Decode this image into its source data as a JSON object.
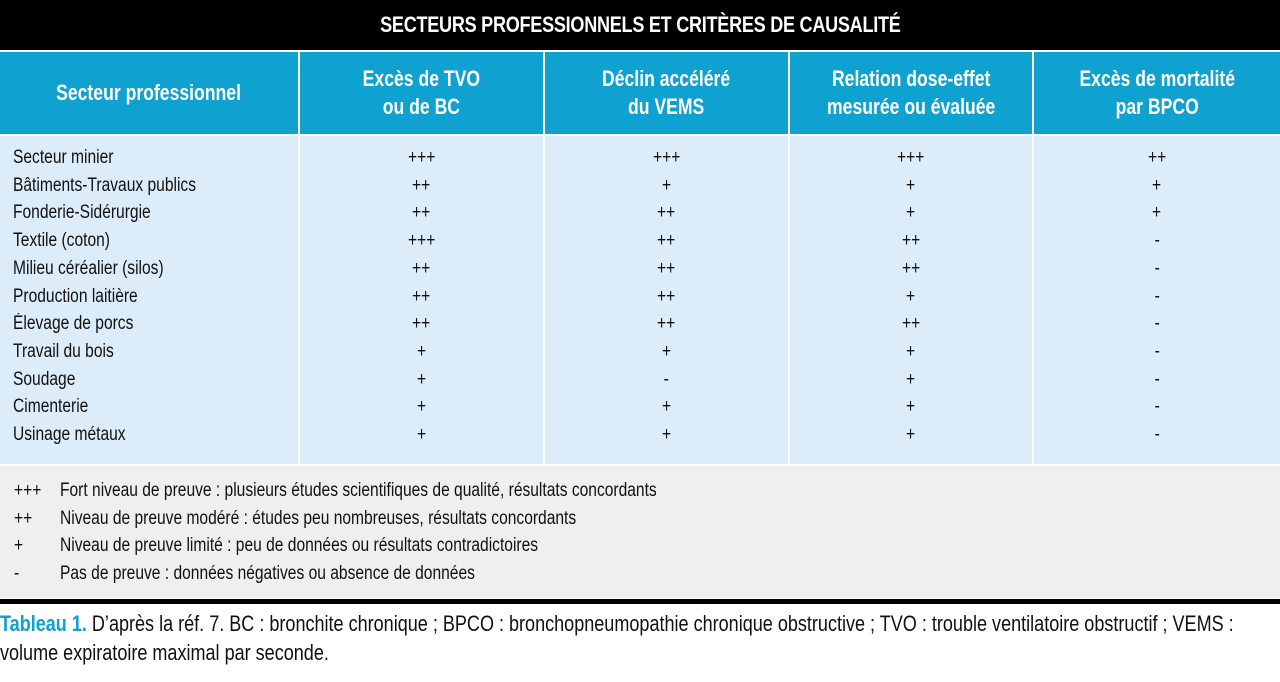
{
  "title": "SECTEURS PROFESSIONNELS ET CRITÈRES DE CAUSALITÉ",
  "columns": [
    "Secteur professionnel",
    "Excès de TVO\nou de BC",
    "Déclin accéléré\ndu VEMS",
    "Relation dose-effet\nmesurée ou évaluée",
    "Excès de mortalité\npar BPCO"
  ],
  "rows": [
    [
      "Secteur minier",
      "+++",
      "+++",
      "+++",
      "++"
    ],
    [
      "Bâtiments-Travaux publics",
      "++",
      "+",
      "+",
      "+"
    ],
    [
      "Fonderie-Sidérurgie",
      "++",
      "++",
      "+",
      "+"
    ],
    [
      "Textile (coton)",
      "+++",
      "++",
      "++",
      "-"
    ],
    [
      "Milieu céréalier (silos)",
      "++",
      "++",
      "++",
      "-"
    ],
    [
      "Production laitière",
      "++",
      "++",
      "+",
      "-"
    ],
    [
      "Élevage de porcs",
      "++",
      "++",
      "++",
      "-"
    ],
    [
      "Travail du bois",
      "+",
      "+",
      "+",
      "-"
    ],
    [
      "Soudage",
      "+",
      "-",
      "+",
      "-"
    ],
    [
      "Cimenterie",
      "+",
      "+",
      "+",
      "-"
    ],
    [
      "Usinage métaux",
      "+",
      "+",
      "+",
      "-"
    ]
  ],
  "legend": [
    {
      "symbol": "+++",
      "text": "Fort niveau de preuve : plusieurs études scientifiques de qualité, résultats concordants"
    },
    {
      "symbol": "++",
      "text": "Niveau de preuve modéré : études peu nombreuses, résultats concordants"
    },
    {
      "symbol": "+",
      "text": "Niveau de preuve limité : peu de données ou résultats contradictoires"
    },
    {
      "symbol": "-",
      "text": "Pas de preuve : données négatives ou absence de données"
    }
  ],
  "caption": {
    "label": "Tableau 1.",
    "text": " D’après la réf. 7. BC : bronchite chronique ; BPCO : bronchopneumopathie chronique obstructive ; TVO : trouble ventilatoire obstructif ; VEMS : volume expiratoire maximal par seconde."
  },
  "colors": {
    "accent": "#0fa1d0",
    "body_bg": "#dcecf8",
    "legend_bg": "#efeef0"
  }
}
